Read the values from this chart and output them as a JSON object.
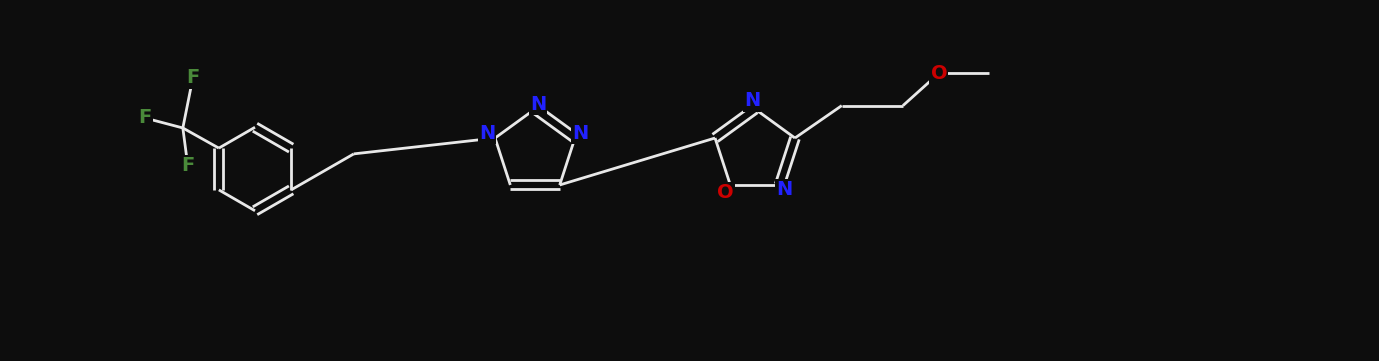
{
  "bg": "#0d0d0d",
  "white": "#e8e8e8",
  "N_color": "#2222ff",
  "O_color": "#cc0000",
  "F_color": "#4a8a3a",
  "lw": 2.0,
  "fs": 14,
  "fig_w": 13.79,
  "fig_h": 3.61,
  "dpi": 100,
  "xlim": [
    0,
    13.79
  ],
  "ylim": [
    0,
    3.61
  ]
}
